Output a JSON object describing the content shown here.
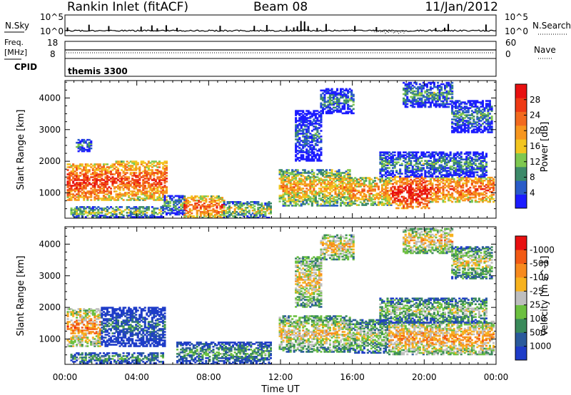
{
  "header": {
    "station": "Rankin Inlet (fitACF)",
    "beam": "Beam 08",
    "date": "11/Jan/2012"
  },
  "strips": {
    "nsky_label": "N.Sky",
    "nsky_left_ticks": [
      "10^5",
      "10^0"
    ],
    "nsearch_label": "N.Search",
    "nsearch_right_ticks": [
      "10^5",
      "10^0"
    ],
    "freq_label_1": "Freq.",
    "freq_label_2": "[MHz]",
    "freq_ticks": [
      "18",
      "8"
    ],
    "nave_label": "Nave",
    "nave_ticks": [
      "60",
      "0"
    ],
    "cpid_label": "CPID",
    "cpid_value": "themis 3300"
  },
  "chart_data": [
    {
      "type": "heatmap",
      "name": "power",
      "ylabel": "Slant Range [km]",
      "yticks": [
        1000,
        2000,
        3000,
        4000
      ],
      "ylim": [
        200,
        4550
      ],
      "xlim": [
        0,
        24
      ],
      "colorbar": {
        "label": "Power [dB]",
        "ticks": [
          "4",
          "8",
          "12",
          "16",
          "20",
          "24",
          "28"
        ],
        "colors": [
          "#1c1cff",
          "#2a5cc8",
          "#3d8a6a",
          "#7ec850",
          "#f2c520",
          "#f7961e",
          "#f26a1e",
          "#ee3a14",
          "#e81010"
        ]
      },
      "echo_regions": [
        {
          "t0": 0.1,
          "t1": 2.7,
          "r0": 760,
          "r1": 1900,
          "level": 0.88
        },
        {
          "t0": 2.7,
          "t1": 5.6,
          "r0": 760,
          "r1": 2000,
          "level": 0.82
        },
        {
          "t0": 0.3,
          "t1": 5.4,
          "r0": 220,
          "r1": 560,
          "level": 0.45
        },
        {
          "t0": 0.6,
          "t1": 1.5,
          "r0": 2300,
          "r1": 2700,
          "level": 0.3
        },
        {
          "t0": 5.4,
          "t1": 6.6,
          "r0": 300,
          "r1": 900,
          "level": 0.35
        },
        {
          "t0": 6.6,
          "t1": 8.8,
          "r0": 200,
          "r1": 900,
          "level": 0.8
        },
        {
          "t0": 8.8,
          "t1": 11.4,
          "r0": 200,
          "r1": 700,
          "level": 0.5
        },
        {
          "t0": 11.9,
          "t1": 15.8,
          "r0": 580,
          "r1": 1750,
          "level": 0.62
        },
        {
          "t0": 15.8,
          "t1": 18.2,
          "r0": 600,
          "r1": 1500,
          "level": 0.7
        },
        {
          "t0": 18.2,
          "t1": 20.3,
          "r0": 500,
          "r1": 1500,
          "level": 0.95
        },
        {
          "t0": 20.3,
          "t1": 23.9,
          "r0": 700,
          "r1": 1500,
          "level": 0.82
        },
        {
          "t0": 17.5,
          "t1": 23.5,
          "r0": 1500,
          "r1": 2300,
          "level": 0.3
        },
        {
          "t0": 12.8,
          "t1": 14.2,
          "r0": 2000,
          "r1": 3600,
          "level": 0.22
        },
        {
          "t0": 14.2,
          "t1": 16.0,
          "r0": 3500,
          "r1": 4300,
          "level": 0.3
        },
        {
          "t0": 18.8,
          "t1": 21.6,
          "r0": 3700,
          "r1": 4500,
          "level": 0.32
        },
        {
          "t0": 21.5,
          "t1": 23.8,
          "r0": 2900,
          "r1": 3900,
          "level": 0.3
        }
      ]
    },
    {
      "type": "heatmap",
      "name": "velocity",
      "ylabel": "Slant Range [km]",
      "yticks": [
        1000,
        2000,
        3000,
        4000
      ],
      "ylim": [
        200,
        4550
      ],
      "xlim": [
        0,
        24
      ],
      "xlabel": "Time UT",
      "xtick_labels": [
        "00:00",
        "04:00",
        "08:00",
        "12:00",
        "16:00",
        "20:00",
        "00:00"
      ],
      "colorbar": {
        "label": "Velocity [m s^-1]",
        "ticks": [
          "1000",
          "500",
          "100",
          "25",
          "-25",
          "-100",
          "-500",
          "-1000"
        ],
        "colors": [
          "#1e3cc8",
          "#2a5a9c",
          "#3a8a5a",
          "#6cc040",
          "#bebebe",
          "#f7b21e",
          "#f78a1e",
          "#f25a14",
          "#e81010"
        ]
      },
      "echo_regions": [
        {
          "t0": 0.1,
          "t1": 2.0,
          "r0": 760,
          "r1": 1950,
          "level": 0.75
        },
        {
          "t0": 2.0,
          "t1": 5.5,
          "r0": 760,
          "r1": 2000,
          "level": 0.22
        },
        {
          "t0": 0.3,
          "t1": 5.4,
          "r0": 220,
          "r1": 560,
          "level": 0.36
        },
        {
          "t0": 6.2,
          "t1": 11.4,
          "r0": 200,
          "r1": 900,
          "level": 0.35
        },
        {
          "t0": 11.9,
          "t1": 15.8,
          "r0": 580,
          "r1": 1750,
          "level": 0.62
        },
        {
          "t0": 15.8,
          "t1": 18.0,
          "r0": 550,
          "r1": 1600,
          "level": 0.5
        },
        {
          "t0": 18.0,
          "t1": 23.9,
          "r0": 500,
          "r1": 1550,
          "level": 0.72
        },
        {
          "t0": 17.5,
          "t1": 23.5,
          "r0": 1500,
          "r1": 2300,
          "level": 0.48
        },
        {
          "t0": 12.8,
          "t1": 14.2,
          "r0": 2000,
          "r1": 3600,
          "level": 0.62
        },
        {
          "t0": 14.2,
          "t1": 16.0,
          "r0": 3500,
          "r1": 4300,
          "level": 0.65
        },
        {
          "t0": 18.8,
          "t1": 21.6,
          "r0": 3700,
          "r1": 4500,
          "level": 0.66
        },
        {
          "t0": 21.5,
          "t1": 23.8,
          "r0": 2900,
          "r1": 3900,
          "level": 0.55
        }
      ]
    }
  ]
}
